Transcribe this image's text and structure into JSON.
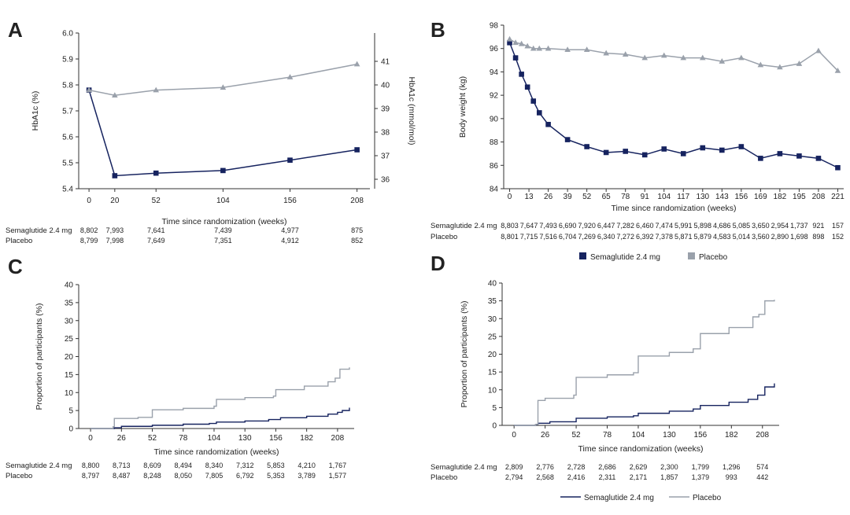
{
  "colors": {
    "semaglutide": "#16235f",
    "placebo": "#9aa1ab",
    "axis": "#333333"
  },
  "legend_groups": [
    {
      "panel": "B",
      "labels": [
        "Semaglutide 2.4 mg",
        "Placebo"
      ]
    },
    {
      "panel": "D",
      "labels": [
        "Semaglutide 2.4 mg",
        "Placebo"
      ]
    }
  ],
  "chart_data": [
    {
      "panel": "A",
      "type": "line",
      "xlabel": "Time since randomization (weeks)",
      "ylabel": "HbA1c (%)",
      "y2label": "HbA1c (mmol/mol)",
      "x": [
        0,
        20,
        52,
        104,
        156,
        208
      ],
      "xticks": [
        "0",
        "20",
        "52",
        "104",
        "156",
        "208"
      ],
      "ylim": [
        5.4,
        6.0
      ],
      "yticks": [
        "5.4",
        "5.5",
        "5.6",
        "5.7",
        "5.8",
        "5.9",
        "6.0"
      ],
      "y2ticks": [
        "36",
        "37",
        "38",
        "39",
        "40",
        "41"
      ],
      "series": [
        {
          "name": "Semaglutide 2.4 mg",
          "values": [
            5.78,
            5.45,
            5.46,
            5.47,
            5.51,
            5.55
          ]
        },
        {
          "name": "Placebo",
          "values": [
            5.78,
            5.76,
            5.78,
            5.79,
            5.83,
            5.88
          ]
        }
      ],
      "risk_table": {
        "rows": [
          {
            "label": "Semaglutide 2.4 mg",
            "values": [
              "8,802",
              "7,993",
              "7,641",
              "7,439",
              "4,977",
              "875"
            ]
          },
          {
            "label": "Placebo",
            "values": [
              "8,799",
              "7,998",
              "7,649",
              "7,351",
              "4,912",
              "852"
            ]
          }
        ]
      }
    },
    {
      "panel": "B",
      "type": "line",
      "xlabel": "Time since randomization (weeks)",
      "ylabel": "Body weight (kg)",
      "x": [
        0,
        4,
        8,
        12,
        16,
        20,
        26,
        39,
        52,
        65,
        78,
        91,
        104,
        117,
        130,
        143,
        156,
        169,
        182,
        195,
        208,
        221
      ],
      "xticks": [
        "0",
        "13",
        "26",
        "39",
        "52",
        "65",
        "78",
        "91",
        "104",
        "117",
        "130",
        "143",
        "156",
        "169",
        "182",
        "195",
        "208",
        "221"
      ],
      "ylim": [
        84,
        98
      ],
      "yticks": [
        "84",
        "86",
        "88",
        "90",
        "92",
        "94",
        "96",
        "98"
      ],
      "series": [
        {
          "name": "Semaglutide 2.4 mg",
          "values": [
            96.5,
            95.2,
            93.8,
            92.7,
            91.5,
            90.5,
            89.5,
            88.2,
            87.6,
            87.1,
            87.2,
            86.9,
            87.4,
            87.0,
            87.5,
            87.3,
            87.6,
            86.6,
            87.0,
            86.8,
            86.6,
            85.8
          ]
        },
        {
          "name": "Placebo",
          "values": [
            96.8,
            96.5,
            96.4,
            96.2,
            96.0,
            96.0,
            96.0,
            95.9,
            95.9,
            95.6,
            95.5,
            95.2,
            95.4,
            95.2,
            95.2,
            94.9,
            95.2,
            94.6,
            94.4,
            94.7,
            95.8,
            94.1
          ]
        }
      ],
      "risk_table": {
        "rows": [
          {
            "label": "Semaglutide 2.4 mg",
            "values": [
              "8,803",
              "7,647",
              "7,493",
              "6,690",
              "7,920",
              "6,447",
              "7,282",
              "6,460",
              "7,474",
              "5,991",
              "5,898",
              "4,686",
              "5,085",
              "3,650",
              "2,954",
              "1,737",
              "921",
              "157"
            ]
          },
          {
            "label": "Placebo",
            "values": [
              "8,801",
              "7,715",
              "7,516",
              "6,704",
              "7,269",
              "6,340",
              "7,272",
              "6,392",
              "7,378",
              "5,871",
              "5,879",
              "4,583",
              "5,014",
              "3,560",
              "2,890",
              "1,698",
              "898",
              "152"
            ]
          }
        ]
      }
    },
    {
      "panel": "C",
      "type": "line",
      "xlabel": "Time since randomization (weeks)",
      "ylabel": "Proportion of participants (%)",
      "xticks": [
        "0",
        "26",
        "52",
        "78",
        "104",
        "130",
        "156",
        "182",
        "208"
      ],
      "ylim": [
        0,
        40
      ],
      "yticks": [
        "0",
        "5",
        "10",
        "15",
        "20",
        "25",
        "30",
        "35",
        "40"
      ],
      "series": [
        {
          "name": "Semaglutide 2.4 mg",
          "x": [
            0,
            20,
            26,
            52,
            78,
            100,
            106,
            130,
            150,
            160,
            182,
            200,
            208,
            212,
            218
          ],
          "values": [
            0,
            0.2,
            0.6,
            0.9,
            1.2,
            1.4,
            1.8,
            2.1,
            2.5,
            3.0,
            3.4,
            4.0,
            4.5,
            5.0,
            5.8
          ]
        },
        {
          "name": "Placebo",
          "x": [
            0,
            19,
            20,
            40,
            52,
            78,
            104,
            106,
            130,
            154,
            156,
            180,
            200,
            206,
            210,
            218
          ],
          "values": [
            0,
            0.5,
            2.8,
            3.1,
            5.2,
            5.6,
            6.2,
            8.1,
            8.6,
            9.0,
            10.8,
            11.8,
            13.0,
            14.0,
            16.5,
            17.0
          ]
        }
      ],
      "risk_table": {
        "rows": [
          {
            "label": "Semaglutide 2.4 mg",
            "values": [
              "8,800",
              "8,713",
              "8,609",
              "8,494",
              "8,340",
              "7,312",
              "5,853",
              "4,210",
              "1,767"
            ]
          },
          {
            "label": "Placebo",
            "values": [
              "8,797",
              "8,487",
              "8,248",
              "8,050",
              "7,805",
              "6,792",
              "5,353",
              "3,789",
              "1,577"
            ]
          }
        ]
      }
    },
    {
      "panel": "D",
      "type": "line",
      "xlabel": "Time since randomization (weeks)",
      "ylabel": "Proportion of participants (%)",
      "xticks": [
        "0",
        "26",
        "52",
        "78",
        "104",
        "130",
        "156",
        "182",
        "208"
      ],
      "ylim": [
        0,
        40
      ],
      "yticks": [
        "0",
        "5",
        "10",
        "15",
        "20",
        "25",
        "30",
        "35",
        "40"
      ],
      "series": [
        {
          "name": "Semaglutide 2.4 mg",
          "x": [
            0,
            18,
            20,
            30,
            52,
            78,
            100,
            104,
            130,
            150,
            156,
            180,
            196,
            204,
            210,
            218
          ],
          "values": [
            0,
            0.2,
            0.6,
            1.0,
            2.0,
            2.4,
            2.7,
            3.4,
            4.0,
            4.6,
            5.6,
            6.5,
            7.3,
            8.5,
            10.8,
            11.8
          ]
        },
        {
          "name": "Placebo",
          "x": [
            0,
            18,
            20,
            26,
            50,
            52,
            78,
            100,
            104,
            130,
            150,
            156,
            180,
            200,
            205,
            210,
            218
          ],
          "values": [
            0,
            0.3,
            7.0,
            7.6,
            8.5,
            13.5,
            14.2,
            14.8,
            19.5,
            20.5,
            21.5,
            25.8,
            27.5,
            30.5,
            31.2,
            35.0,
            35.3
          ]
        }
      ],
      "risk_table": {
        "rows": [
          {
            "label": "Semaglutide 2.4 mg",
            "values": [
              "2,809",
              "2,776",
              "2,728",
              "2,686",
              "2,629",
              "2,300",
              "1,799",
              "1,296",
              "574"
            ]
          },
          {
            "label": "Placebo",
            "values": [
              "2,794",
              "2,568",
              "2,416",
              "2,311",
              "2,171",
              "1,857",
              "1,379",
              "993",
              "442"
            ]
          }
        ]
      }
    }
  ]
}
